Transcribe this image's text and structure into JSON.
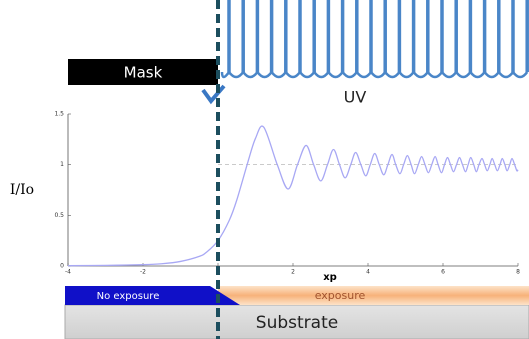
{
  "labels": {
    "mask": "Mask",
    "uv": "UV",
    "no_exposure": "No exposure",
    "exposure": "exposure",
    "substrate": "Substrate"
  },
  "chart_data": {
    "type": "line",
    "xlabel": "xp",
    "ylabel": "I/Io",
    "xlim": [
      -4,
      8
    ],
    "xticks": [
      -4,
      -2,
      0,
      2,
      4,
      6,
      8
    ],
    "ylim": [
      0,
      1.5
    ],
    "yticks": [
      0,
      0.5,
      1,
      1.5
    ],
    "reference_line": 1,
    "x": [
      -4,
      -3,
      -2,
      -1.5,
      -1,
      -0.5,
      -0.3,
      0,
      0.3,
      0.5,
      0.8,
      1,
      1.22,
      1.58,
      1.87,
      2.12,
      2.35,
      2.55,
      2.74,
      2.92,
      3.08,
      3.24,
      3.39,
      3.54,
      3.67,
      3.81,
      3.94,
      4.06,
      4.18,
      4.3,
      4.42,
      4.53,
      4.64,
      4.74,
      4.85,
      4.95,
      5.05,
      5.15,
      5.24,
      5.34,
      5.43,
      5.52,
      5.61,
      5.7,
      5.79,
      5.87,
      5.96,
      6.04,
      6.12,
      6.2,
      6.28,
      6.36,
      6.44,
      6.52,
      6.6,
      6.67,
      6.74,
      6.82,
      6.89,
      6.96,
      7.04,
      7.11,
      7.18,
      7.25,
      7.31,
      7.38,
      7.45,
      7.52,
      7.58,
      7.65,
      7.71,
      7.78,
      7.84,
      7.91,
      7.97,
      8
    ],
    "series": [
      {
        "color": "#a8a8f4",
        "values": [
          0.003,
          0.006,
          0.013,
          0.022,
          0.045,
          0.095,
          0.138,
          0.25,
          0.45,
          0.65,
          1.03,
          1.26,
          1.37,
          1,
          0.76,
          1,
          1.19,
          1,
          0.84,
          1,
          1.15,
          1,
          0.87,
          1,
          1.12,
          1,
          0.89,
          1,
          1.11,
          1,
          0.9,
          1,
          1.1,
          1,
          0.91,
          1,
          1.09,
          1,
          0.91,
          1,
          1.08,
          1,
          0.92,
          1,
          1.08,
          1,
          0.92,
          1,
          1.07,
          1,
          0.93,
          1,
          1.07,
          1,
          0.93,
          1,
          1.07,
          1,
          0.93,
          1,
          1.06,
          1,
          0.94,
          1,
          1.06,
          1,
          0.94,
          1,
          1.06,
          1,
          0.94,
          1,
          1.06,
          1,
          0.94,
          0.95
        ]
      }
    ]
  }
}
